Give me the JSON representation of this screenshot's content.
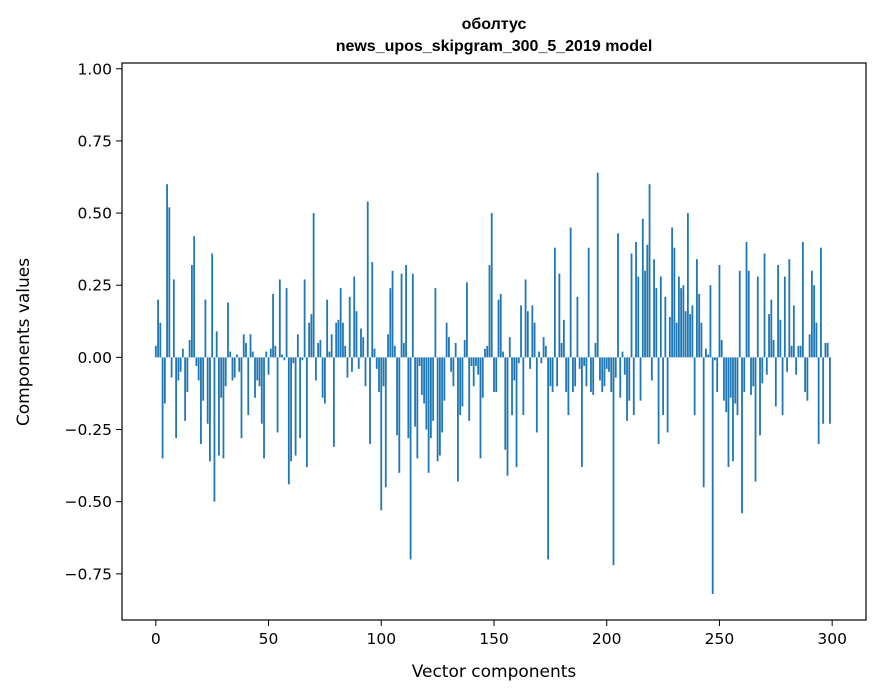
{
  "chart_data": {
    "type": "bar",
    "title_lines": [
      "оболтус",
      "news_upos_skipgram_300_5_2019 model"
    ],
    "xlabel": "Vector components",
    "ylabel": "Components values",
    "xlim": [
      -15,
      315
    ],
    "ylim": [
      -0.91,
      1.02
    ],
    "xticks": [
      0,
      50,
      100,
      150,
      200,
      250,
      300
    ],
    "xtick_labels": [
      "0",
      "50",
      "100",
      "150",
      "200",
      "250",
      "300"
    ],
    "yticks": [
      -0.75,
      -0.5,
      -0.25,
      0.0,
      0.25,
      0.5,
      0.75,
      1.0
    ],
    "ytick_labels": [
      "−0.75",
      "−0.50",
      "−0.25",
      "0.00",
      "0.25",
      "0.50",
      "0.75",
      "1.00"
    ],
    "grid": false,
    "bar_color": "#1f77b4",
    "values": [
      0.04,
      0.2,
      0.12,
      -0.35,
      -0.16,
      0.6,
      0.52,
      -0.07,
      0.27,
      -0.28,
      -0.08,
      -0.05,
      0.03,
      -0.22,
      -0.12,
      0.06,
      0.32,
      0.42,
      -0.03,
      -0.08,
      -0.3,
      -0.15,
      0.2,
      -0.23,
      -0.36,
      0.36,
      -0.5,
      0.09,
      -0.34,
      -0.14,
      -0.35,
      -0.1,
      0.19,
      0.02,
      -0.08,
      -0.07,
      0.01,
      -0.05,
      -0.28,
      0.08,
      0.05,
      -0.2,
      0.08,
      0.02,
      -0.14,
      -0.08,
      -0.1,
      -0.23,
      -0.35,
      0.02,
      -0.06,
      0.03,
      0.22,
      0.04,
      -0.26,
      0.27,
      0.01,
      -0.01,
      0.24,
      -0.44,
      -0.36,
      -0.02,
      -0.34,
      0.08,
      -0.28,
      -0.01,
      0.27,
      -0.38,
      0.12,
      0.15,
      0.5,
      -0.08,
      0.05,
      0.06,
      -0.14,
      -0.16,
      0.2,
      0.02,
      0.08,
      -0.31,
      0.12,
      0.13,
      0.24,
      0.12,
      0.04,
      -0.07,
      0.21,
      -0.05,
      0.28,
      0.16,
      -0.04,
      0.1,
      0.07,
      -0.1,
      0.54,
      -0.3,
      0.33,
      0.03,
      -0.04,
      -0.12,
      -0.53,
      -0.1,
      -0.45,
      0.08,
      0.24,
      0.3,
      0.04,
      -0.27,
      -0.4,
      0.29,
      0.05,
      0.32,
      -0.28,
      -0.7,
      0.29,
      -0.24,
      -0.35,
      -0.03,
      -0.13,
      -0.16,
      -0.25,
      -0.4,
      -0.28,
      -0.22,
      0.24,
      -0.36,
      -0.34,
      -0.26,
      -0.15,
      0.12,
      0.07,
      -0.05,
      -0.1,
      0.05,
      -0.43,
      -0.2,
      -0.17,
      0.06,
      0.26,
      -0.22,
      -0.03,
      -0.1,
      -0.03,
      -0.06,
      -0.35,
      -0.14,
      0.03,
      0.04,
      0.32,
      0.5,
      -0.12,
      -0.12,
      0.2,
      0.22,
      0.02,
      -0.32,
      -0.41,
      0.07,
      -0.2,
      -0.08,
      -0.38,
      -0.02,
      0.18,
      -0.2,
      0.27,
      0.16,
      -0.04,
      0.18,
      0.12,
      -0.26,
      0.02,
      -0.02,
      0.07,
      0.04,
      -0.7,
      -0.1,
      -0.12,
      0.38,
      -0.1,
      0.29,
      0.05,
      0.13,
      -0.12,
      -0.2,
      0.45,
      -0.12,
      -0.1,
      0.21,
      -0.04,
      -0.38,
      -0.03,
      -0.1,
      0.38,
      -0.12,
      -0.13,
      0.05,
      0.64,
      -0.08,
      -0.12,
      -0.1,
      -0.04,
      -0.05,
      -0.12,
      -0.72,
      -0.07,
      0.43,
      -0.14,
      0.02,
      -0.06,
      -0.22,
      -0.15,
      0.36,
      -0.2,
      0.4,
      0.28,
      -0.15,
      0.48,
      0.3,
      0.39,
      0.6,
      -0.08,
      0.34,
      0.24,
      -0.3,
      0.28,
      -0.2,
      0.21,
      -0.26,
      0.14,
      0.45,
      0.38,
      0.12,
      0.28,
      0.24,
      0.25,
      0.16,
      0.5,
      0.15,
      0.18,
      -0.2,
      0.34,
      0.22,
      0.12,
      -0.45,
      0.03,
      0.01,
      0.25,
      -0.82,
      -0.01,
      -0.12,
      0.32,
      0.06,
      -0.15,
      -0.19,
      -0.38,
      -0.14,
      -0.36,
      -0.16,
      -0.2,
      0.3,
      -0.54,
      -0.12,
      0.4,
      0.3,
      -0.13,
      -0.1,
      -0.43,
      0.28,
      -0.27,
      -0.09,
      0.36,
      -0.06,
      0.15,
      0.2,
      0.06,
      -0.17,
      0.32,
      0.13,
      -0.2,
      0.28,
      -0.05,
      0.34,
      0.04,
      0.18,
      -0.06,
      0.04,
      0.04,
      0.4,
      -0.12,
      -0.15,
      0.08,
      0.3,
      0.25,
      0.12,
      -0.3,
      0.38,
      -0.23,
      0.05,
      0.05,
      -0.23
    ]
  }
}
